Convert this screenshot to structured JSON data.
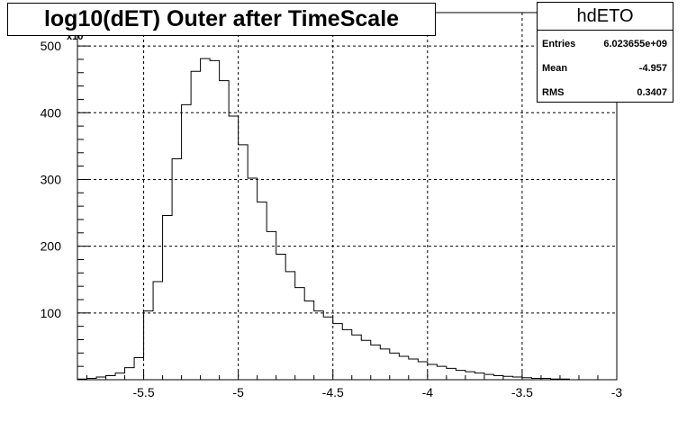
{
  "chart_data": {
    "type": "histogram",
    "title": "log10(dET) Outer after TimeScale",
    "y_exponent_label": "x10",
    "xlim": [
      -5.85,
      -3.0
    ],
    "ylim": [
      0,
      550
    ],
    "x_ticks": [
      -5.5,
      -5,
      -4.5,
      -4,
      -3.5,
      -3
    ],
    "x_tick_labels": [
      "-5.5",
      "-5",
      "-4.5",
      "-4",
      "-3.5",
      "-3"
    ],
    "y_ticks": [
      100,
      200,
      300,
      400,
      500
    ],
    "y_tick_labels": [
      "100",
      "200",
      "300",
      "400",
      "500"
    ],
    "grid": true,
    "bin_width": 0.05,
    "bin_start": -5.85,
    "values": [
      1,
      2,
      4,
      6,
      10,
      18,
      33,
      103,
      147,
      246,
      331,
      412,
      462,
      481,
      478,
      448,
      395,
      352,
      302,
      266,
      222,
      188,
      162,
      138,
      118,
      103,
      94,
      84,
      75,
      67,
      59,
      52,
      46,
      40,
      35,
      31,
      27,
      23,
      20,
      17,
      14,
      12,
      10,
      8,
      6,
      5,
      4,
      3,
      2,
      2,
      1,
      1,
      0,
      0,
      0,
      0,
      0
    ]
  },
  "stats": {
    "name": "hdETO",
    "rows": [
      {
        "label": "Entries",
        "value": "6.023655e+09"
      },
      {
        "label": "Mean",
        "value": "-4.957"
      },
      {
        "label": "RMS",
        "value": "0.3407"
      }
    ]
  }
}
